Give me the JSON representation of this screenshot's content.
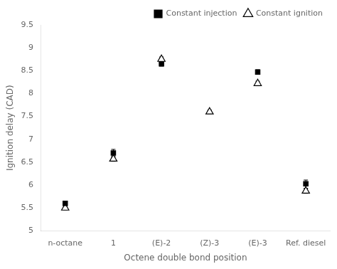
{
  "chart_data": {
    "type": "scatter",
    "categories": [
      "n-octane",
      "1",
      "(E)-2",
      "(Z)-3",
      "(E)-3",
      "Ref. diesel"
    ],
    "series": [
      {
        "name": "Constant injection",
        "color": "black",
        "marker": "square",
        "values": [
          5.6,
          6.7,
          8.65,
          null,
          8.47,
          6.03
        ],
        "yerr_low": [
          0.05,
          0.08,
          0.05,
          null,
          0.05,
          0.1
        ],
        "yerr_high": [
          0.05,
          0.08,
          0.05,
          null,
          0.05,
          0.08
        ]
      },
      {
        "name": "Constant ignition",
        "color": "black",
        "marker": "triangle-open",
        "values": [
          5.5,
          6.57,
          8.75,
          7.6,
          8.22,
          5.87
        ],
        "yerr_low": [
          0.04,
          0.05,
          0.05,
          0.04,
          0.05,
          0.05
        ],
        "yerr_high": [
          0.04,
          0.05,
          0.05,
          0.04,
          0.05,
          0.05
        ]
      }
    ],
    "xlabel": "Octene double bond position",
    "ylabel": "Ignition delay (CAD)",
    "ylim": [
      5.0,
      9.5
    ],
    "yticks": [
      5.0,
      5.5,
      6.0,
      6.5,
      7.0,
      7.5,
      8.0,
      8.5,
      9.0,
      9.5
    ],
    "legend": "upper right",
    "grid": false
  }
}
